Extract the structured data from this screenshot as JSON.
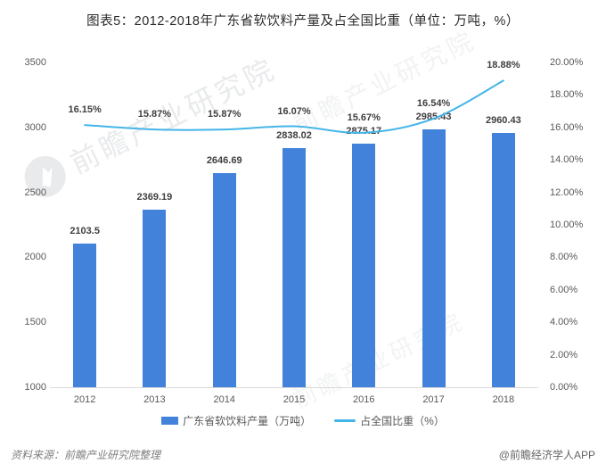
{
  "title": "图表5：2012-2018年广东省软饮料产量及占全国比重（单位：万吨，%）",
  "footer": {
    "source": "资料来源：前瞻产业研究院整理",
    "brand": "@前瞻经济学人APP"
  },
  "watermark": {
    "text": "前瞻产业研究院"
  },
  "colors": {
    "bar": "#4282db",
    "line": "#44b5e8",
    "label_text": "#3f3f3f",
    "axis_text": "#595959",
    "axis_line": "#d9d9d9",
    "title_text": "#2b2b2b",
    "footer_text": "#7f7f7f"
  },
  "chart_data": {
    "type": "bar",
    "subtype": "bar+line dual-axis combo",
    "title": "图表5：2012-2018年广东省软饮料产量及占全国比重（单位：万吨，%）",
    "categories": [
      "2012",
      "2013",
      "2014",
      "2015",
      "2016",
      "2017",
      "2018"
    ],
    "series": [
      {
        "name": "广东省软饮料产量（万吨）",
        "type": "bar",
        "axis": "left",
        "values": [
          2103.5,
          2369.19,
          2646.69,
          2838.02,
          2875.17,
          2985.43,
          2960.43
        ],
        "labels": [
          "2103.5",
          "2369.19",
          "2646.69",
          "2838.02",
          "2875.17",
          "2985.43",
          "2960.43"
        ]
      },
      {
        "name": "占全国比重（%）",
        "type": "line",
        "axis": "right",
        "values": [
          16.15,
          15.87,
          15.87,
          16.07,
          15.67,
          16.54,
          18.88
        ],
        "labels": [
          "16.15%",
          "15.87%",
          "15.87%",
          "16.07%",
          "15.67%",
          "16.54%",
          "18.88%"
        ]
      }
    ],
    "left_axis": {
      "min": 1000,
      "max": 3500,
      "step": 500,
      "tick_labels": [
        "3500",
        "3000",
        "2500",
        "2000",
        "1500",
        "1000"
      ]
    },
    "right_axis": {
      "min": 0,
      "max": 20,
      "step": 2,
      "tick_labels": [
        "20.00%",
        "18.00%",
        "16.00%",
        "14.00%",
        "12.00%",
        "10.00%",
        "8.00%",
        "6.00%",
        "4.00%",
        "2.00%",
        "0.00%"
      ]
    },
    "grid": false,
    "legend_position": "bottom"
  }
}
